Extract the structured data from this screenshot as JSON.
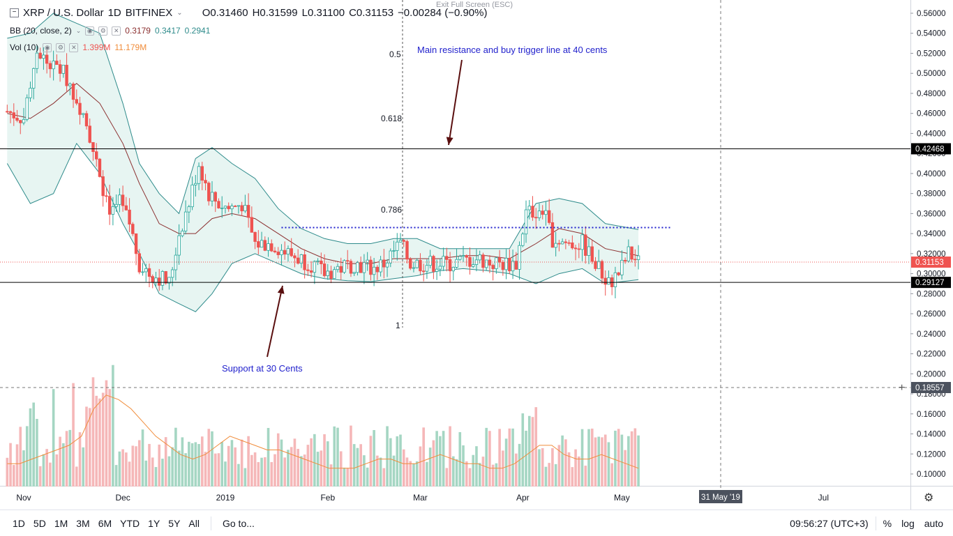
{
  "header": {
    "symbol": "XRP / U.S. Dollar",
    "interval": "1D",
    "exchange": "BITFINEX",
    "open": "O0.31460",
    "high": "H0.31599",
    "low": "L0.31100",
    "close": "C0.31153",
    "change": "−0.00284 (−0.90%)",
    "exit_fullscreen": "Exit Full Screen (ESC)"
  },
  "indicators": {
    "bb": {
      "label": "BB (20, close, 2)",
      "basis": "0.3179",
      "upper": "0.3417",
      "lower": "0.2941"
    },
    "vol": {
      "label": "Vol (10)",
      "value": "1.399M",
      "ma": "11.179M"
    }
  },
  "colors": {
    "up": "#26a69a",
    "down": "#ef5350",
    "up_vol": "#a5d6c3",
    "down_vol": "#f5b7b8",
    "bb_line": "#2e8b8b",
    "bb_fill": "#e1f2ef",
    "basis": "#8b2f2f",
    "vol_ma": "#f08c3a",
    "annotation": "#1f1fcc",
    "arrow": "#5a0f0f"
  },
  "annotations": {
    "resistance_text": "Main resistance and buy trigger line at 40 cents",
    "support_text": "Support at 30 Cents",
    "fib": [
      "0.5",
      "0.618",
      "0.786",
      "1"
    ]
  },
  "price_labels": {
    "resistance": "0.42468",
    "last": "0.31153",
    "support": "0.29127",
    "cursor": "0.18557"
  },
  "x_axis": {
    "labels": [
      "Nov",
      "Dec",
      "2019",
      "Feb",
      "Mar",
      "Apr",
      "May",
      "Jul"
    ],
    "cursor_label": "31 May '19"
  },
  "bottom_bar": {
    "timeframes": [
      "1D",
      "5D",
      "1M",
      "3M",
      "6M",
      "YTD",
      "1Y",
      "5Y",
      "All"
    ],
    "goto": "Go to...",
    "time": "09:56:27 (UTC+3)",
    "percent": "%",
    "log": "log",
    "auto": "auto"
  },
  "chart_data": {
    "type": "candlestick",
    "title": "XRP / U.S. Dollar 1D BITFINEX",
    "ylim": [
      0.09,
      0.57
    ],
    "y_ticks": [
      0.1,
      0.12,
      0.14,
      0.16,
      0.18,
      0.2,
      0.22,
      0.24,
      0.26,
      0.28,
      0.3,
      0.32,
      0.34,
      0.36,
      0.38,
      0.4,
      0.42,
      0.44,
      0.46,
      0.48,
      0.5,
      0.52,
      0.54,
      0.56
    ],
    "x_start": "2018-10-27",
    "x_end": "2019-05-06",
    "horizontal_lines": {
      "resistance": 0.42468,
      "support": 0.29127,
      "last": 0.31153,
      "range_top": 0.346
    },
    "close_path": [
      [
        "2018-10-27",
        0.462
      ],
      [
        "2018-11-01",
        0.455
      ],
      [
        "2018-11-05",
        0.525
      ],
      [
        "2018-11-08",
        0.51
      ],
      [
        "2018-11-12",
        0.505
      ],
      [
        "2018-11-15",
        0.49
      ],
      [
        "2018-11-19",
        0.46
      ],
      [
        "2018-11-21",
        0.44
      ],
      [
        "2018-11-24",
        0.39
      ],
      [
        "2018-11-27",
        0.36
      ],
      [
        "2018-11-30",
        0.37
      ],
      [
        "2018-12-03",
        0.35
      ],
      [
        "2018-12-06",
        0.31
      ],
      [
        "2018-12-09",
        0.3
      ],
      [
        "2018-12-13",
        0.295
      ],
      [
        "2018-12-15",
        0.29
      ],
      [
        "2018-12-18",
        0.34
      ],
      [
        "2018-12-21",
        0.37
      ],
      [
        "2018-12-24",
        0.41
      ],
      [
        "2018-12-27",
        0.38
      ],
      [
        "2018-12-30",
        0.37
      ],
      [
        "2019-01-02",
        0.365
      ],
      [
        "2019-01-06",
        0.37
      ],
      [
        "2019-01-10",
        0.33
      ],
      [
        "2019-01-15",
        0.33
      ],
      [
        "2019-01-20",
        0.32
      ],
      [
        "2019-01-27",
        0.31
      ],
      [
        "2019-01-31",
        0.3
      ],
      [
        "2019-02-04",
        0.305
      ],
      [
        "2019-02-09",
        0.31
      ],
      [
        "2019-02-15",
        0.305
      ],
      [
        "2019-02-18",
        0.31
      ],
      [
        "2019-02-23",
        0.33
      ],
      [
        "2019-02-26",
        0.31
      ],
      [
        "2019-03-03",
        0.31
      ],
      [
        "2019-03-10",
        0.31
      ],
      [
        "2019-03-18",
        0.315
      ],
      [
        "2019-03-23",
        0.31
      ],
      [
        "2019-03-30",
        0.31
      ],
      [
        "2019-04-02",
        0.36
      ],
      [
        "2019-04-07",
        0.365
      ],
      [
        "2019-04-10",
        0.335
      ],
      [
        "2019-04-15",
        0.33
      ],
      [
        "2019-04-19",
        0.33
      ],
      [
        "2019-04-25",
        0.3
      ],
      [
        "2019-04-27",
        0.29
      ],
      [
        "2019-04-30",
        0.3
      ],
      [
        "2019-05-03",
        0.32
      ],
      [
        "2019-05-06",
        0.3115
      ]
    ],
    "bollinger": {
      "upper": [
        [
          "2018-10-27",
          0.535
        ],
        [
          "2018-11-03",
          0.54
        ],
        [
          "2018-11-10",
          0.56
        ],
        [
          "2018-11-17",
          0.55
        ],
        [
          "2018-11-24",
          0.54
        ],
        [
          "2018-12-01",
          0.47
        ],
        [
          "2018-12-06",
          0.41
        ],
        [
          "2018-12-12",
          0.38
        ],
        [
          "2018-12-18",
          0.36
        ],
        [
          "2018-12-23",
          0.415
        ],
        [
          "2018-12-28",
          0.426
        ],
        [
          "2019-01-03",
          0.41
        ],
        [
          "2019-01-10",
          0.395
        ],
        [
          "2019-01-17",
          0.365
        ],
        [
          "2019-01-24",
          0.345
        ],
        [
          "2019-01-31",
          0.335
        ],
        [
          "2019-02-07",
          0.33
        ],
        [
          "2019-02-14",
          0.33
        ],
        [
          "2019-02-21",
          0.335
        ],
        [
          "2019-02-28",
          0.335
        ],
        [
          "2019-03-07",
          0.325
        ],
        [
          "2019-03-14",
          0.325
        ],
        [
          "2019-03-21",
          0.325
        ],
        [
          "2019-03-28",
          0.325
        ],
        [
          "2019-04-05",
          0.37
        ],
        [
          "2019-04-12",
          0.375
        ],
        [
          "2019-04-19",
          0.37
        ],
        [
          "2019-04-26",
          0.35
        ],
        [
          "2019-05-06",
          0.344
        ]
      ],
      "basis": [
        [
          "2018-10-27",
          0.46
        ],
        [
          "2018-11-03",
          0.455
        ],
        [
          "2018-11-10",
          0.47
        ],
        [
          "2018-11-17",
          0.49
        ],
        [
          "2018-11-24",
          0.47
        ],
        [
          "2018-12-01",
          0.43
        ],
        [
          "2018-12-06",
          0.39
        ],
        [
          "2018-12-12",
          0.35
        ],
        [
          "2018-12-18",
          0.34
        ],
        [
          "2018-12-23",
          0.34
        ],
        [
          "2018-12-28",
          0.355
        ],
        [
          "2019-01-03",
          0.36
        ],
        [
          "2019-01-10",
          0.355
        ],
        [
          "2019-01-17",
          0.34
        ],
        [
          "2019-01-24",
          0.325
        ],
        [
          "2019-01-31",
          0.315
        ],
        [
          "2019-02-07",
          0.31
        ],
        [
          "2019-02-14",
          0.31
        ],
        [
          "2019-02-21",
          0.315
        ],
        [
          "2019-02-28",
          0.315
        ],
        [
          "2019-03-07",
          0.315
        ],
        [
          "2019-03-14",
          0.318
        ],
        [
          "2019-03-21",
          0.318
        ],
        [
          "2019-03-28",
          0.315
        ],
        [
          "2019-04-05",
          0.33
        ],
        [
          "2019-04-12",
          0.345
        ],
        [
          "2019-04-19",
          0.34
        ],
        [
          "2019-04-26",
          0.325
        ],
        [
          "2019-05-06",
          0.3179
        ]
      ],
      "lower": [
        [
          "2018-10-27",
          0.41
        ],
        [
          "2018-11-03",
          0.37
        ],
        [
          "2018-11-10",
          0.38
        ],
        [
          "2018-11-17",
          0.43
        ],
        [
          "2018-11-24",
          0.4
        ],
        [
          "2018-12-01",
          0.35
        ],
        [
          "2018-12-06",
          0.32
        ],
        [
          "2018-12-12",
          0.28
        ],
        [
          "2018-12-18",
          0.27
        ],
        [
          "2018-12-23",
          0.262
        ],
        [
          "2018-12-28",
          0.28
        ],
        [
          "2019-01-03",
          0.31
        ],
        [
          "2019-01-10",
          0.32
        ],
        [
          "2019-01-17",
          0.31
        ],
        [
          "2019-01-24",
          0.3
        ],
        [
          "2019-01-31",
          0.295
        ],
        [
          "2019-02-07",
          0.293
        ],
        [
          "2019-02-14",
          0.292
        ],
        [
          "2019-02-21",
          0.295
        ],
        [
          "2019-02-28",
          0.298
        ],
        [
          "2019-03-07",
          0.303
        ],
        [
          "2019-03-14",
          0.305
        ],
        [
          "2019-03-21",
          0.303
        ],
        [
          "2019-03-28",
          0.3
        ],
        [
          "2019-04-05",
          0.29
        ],
        [
          "2019-04-12",
          0.3
        ],
        [
          "2019-04-19",
          0.305
        ],
        [
          "2019-04-26",
          0.29
        ],
        [
          "2019-05-06",
          0.294
        ]
      ]
    },
    "volume": {
      "ma_path": [
        0.25,
        0.25,
        0.3,
        0.35,
        0.4,
        0.45,
        0.55,
        0.85,
        1.0,
        0.95,
        0.85,
        0.7,
        0.55,
        0.45,
        0.35,
        0.3,
        0.35,
        0.45,
        0.55,
        0.5,
        0.45,
        0.4,
        0.4,
        0.35,
        0.3,
        0.25,
        0.2,
        0.2,
        0.2,
        0.25,
        0.3,
        0.3,
        0.25,
        0.25,
        0.3,
        0.35,
        0.3,
        0.25,
        0.25,
        0.2,
        0.2,
        0.25,
        0.35,
        0.45,
        0.45,
        0.35,
        0.3,
        0.3,
        0.35,
        0.3,
        0.25,
        0.2
      ],
      "peaks": [
        [
          "2018-11-22",
          1.0
        ],
        [
          "2018-11-26",
          1.0
        ],
        [
          "2019-04-03",
          0.7
        ],
        [
          "2019-04-24",
          0.5
        ]
      ]
    }
  }
}
